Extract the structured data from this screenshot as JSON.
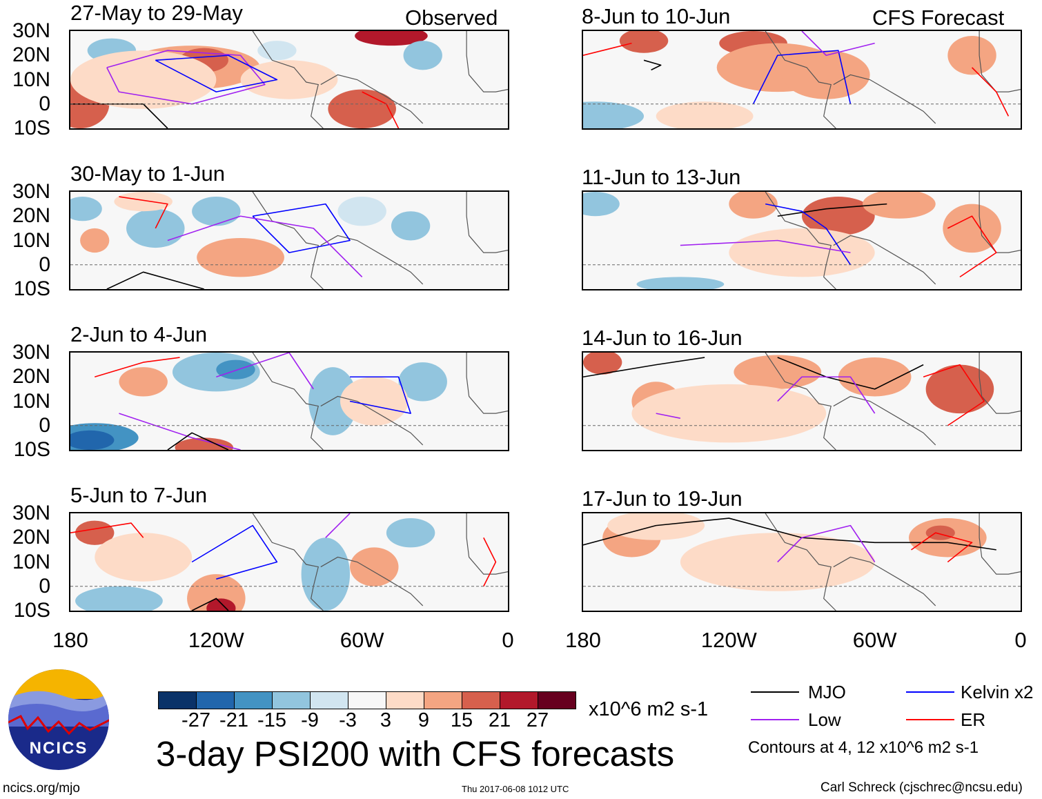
{
  "chart_data": {
    "type": "heatmap",
    "title": "3-day PSI200 with CFS forecasts",
    "units": "x10^6 m2 s-1",
    "observed_label": "Observed",
    "forecast_label": "CFS Forecast",
    "lat_ticks": [
      "30N",
      "20N",
      "10N",
      "0",
      "10S"
    ],
    "lon_ticks": [
      "180",
      "120W",
      "60W",
      "0"
    ],
    "lat_range": [
      -10,
      30
    ],
    "lon_range": [
      -180,
      0
    ],
    "panels": [
      {
        "title": "27-May to 29-May",
        "type": "Observed"
      },
      {
        "title": "30-May to 1-Jun",
        "type": "Observed"
      },
      {
        "title": "2-Jun to 4-Jun",
        "type": "Observed"
      },
      {
        "title": "5-Jun to 7-Jun",
        "type": "Observed"
      },
      {
        "title": "8-Jun to 10-Jun",
        "type": "CFS Forecast"
      },
      {
        "title": "11-Jun to 13-Jun",
        "type": "CFS Forecast"
      },
      {
        "title": "14-Jun to 16-Jun",
        "type": "CFS Forecast"
      },
      {
        "title": "17-Jun to 19-Jun",
        "type": "CFS Forecast"
      }
    ],
    "colorbar": {
      "labels": [
        "-27",
        "-21",
        "-15",
        "-9",
        "-3",
        "3",
        "9",
        "15",
        "21",
        "27"
      ],
      "colors": [
        "#0a3268",
        "#2166ac",
        "#4393c3",
        "#92c5de",
        "#d1e5f0",
        "#f7f7f7",
        "#fddbc7",
        "#f4a582",
        "#d6604d",
        "#b2182b",
        "#67001f"
      ]
    },
    "legend": [
      {
        "label": "MJO",
        "color": "#000000"
      },
      {
        "label": "Kelvin x2",
        "color": "#0000ff"
      },
      {
        "label": "Low",
        "color": "#a020f0"
      },
      {
        "label": "ER",
        "color": "#ff0000"
      }
    ],
    "contour_note": "Contours at 4, 12 x10^6 m2 s-1"
  },
  "footer": {
    "logo_text": "NCICS",
    "url": "ncics.org/mjo",
    "timestamp": "Thu 2017-06-08 1012 UTC",
    "author": "Carl Schreck (cjschrec@ncsu.edu)"
  }
}
